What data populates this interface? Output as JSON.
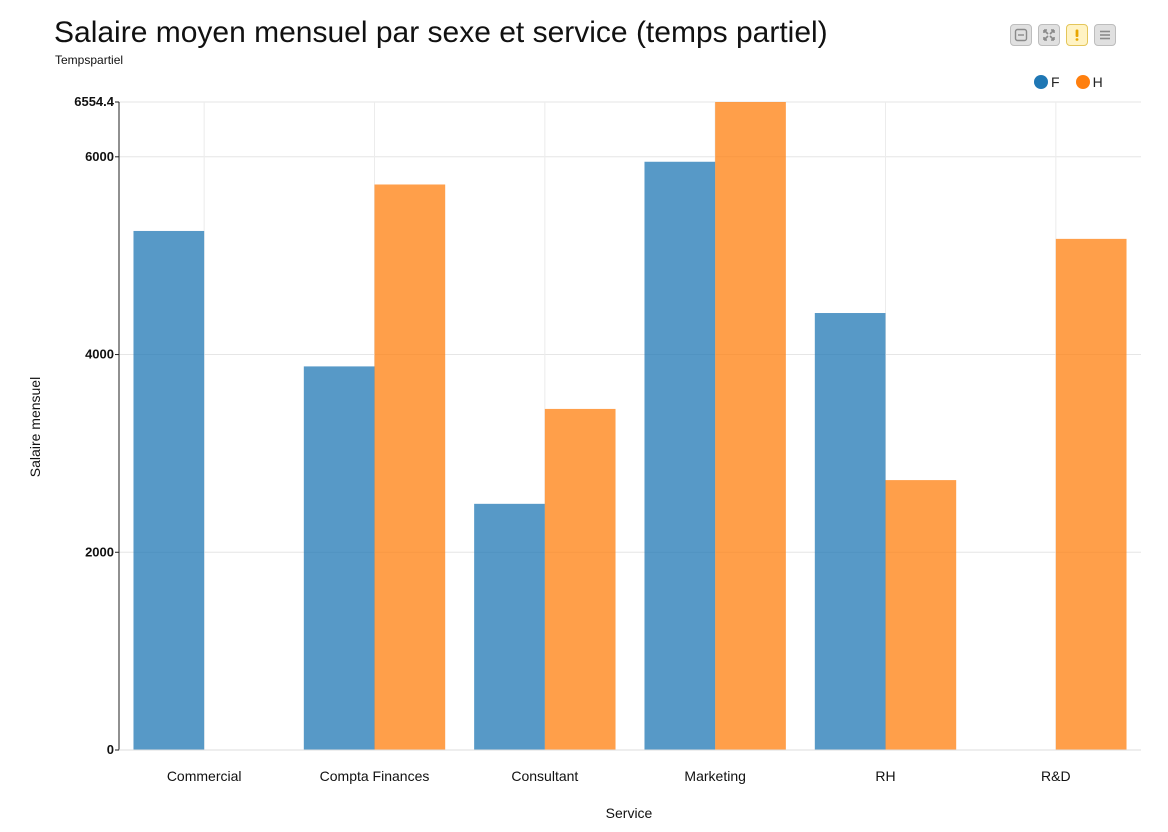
{
  "chart_data": {
    "type": "bar",
    "title": "Salaire moyen mensuel par sexe et service (temps partiel)",
    "subtitle": "Tempspartiel",
    "xlabel": "Service",
    "ylabel": "Salaire mensuel",
    "categories": [
      "Commercial",
      "Compta Finances",
      "Consultant",
      "Marketing",
      "RH",
      "R&D"
    ],
    "series": [
      {
        "name": "F",
        "color": "#1f77b4",
        "values": [
          5250,
          3880,
          2490,
          5950,
          4420,
          null
        ]
      },
      {
        "name": "H",
        "color": "#ff7f0e",
        "values": [
          null,
          5720,
          3450,
          6554.4,
          2730,
          5170
        ]
      }
    ],
    "ylim": [
      0,
      6554.4
    ],
    "yticks": [
      0,
      2000,
      4000,
      6000,
      6554.4
    ],
    "ytick_labels": [
      "0",
      "2000",
      "4000",
      "6000",
      "6554.4"
    ],
    "grid": true,
    "legend_position": "top-right"
  },
  "toolbar": {
    "buttons": [
      {
        "icon": "minimize-icon",
        "name": "minimize-button"
      },
      {
        "icon": "fullscreen-icon",
        "name": "fullscreen-button"
      },
      {
        "icon": "warning-icon",
        "name": "warning-button"
      },
      {
        "icon": "menu-icon",
        "name": "menu-button"
      }
    ]
  }
}
